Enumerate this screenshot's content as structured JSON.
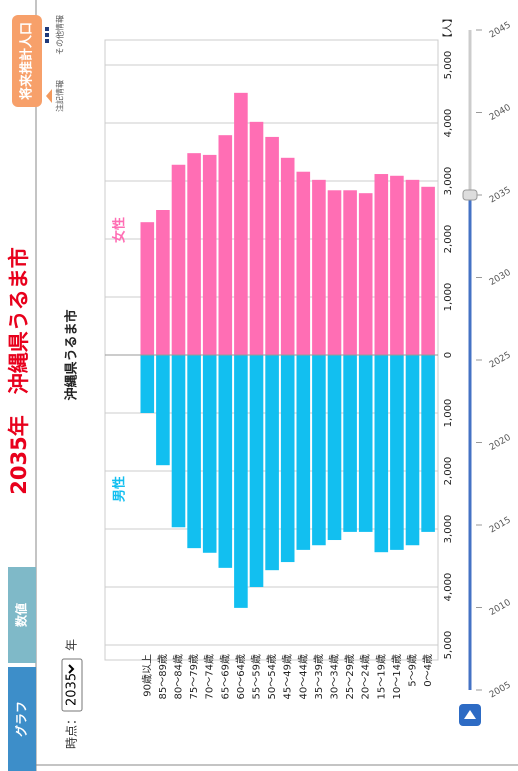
{
  "tabs": [
    "グラフ",
    "数値"
  ],
  "title": "2035年　沖縄県うるま市",
  "buttons": {
    "forecast": "将来推計人口",
    "notes": "注記情報",
    "other": "その他情報"
  },
  "period": {
    "label": "時点：",
    "selected": "2035",
    "unit": "年"
  },
  "chart_data": {
    "type": "pyramid",
    "title": "沖縄県うるま市",
    "unit": "【人】",
    "categories": [
      "90歳以上",
      "85～89歳",
      "80～84歳",
      "75～79歳",
      "70～74歳",
      "65～69歳",
      "60～64歳",
      "55～59歳",
      "50～54歳",
      "45～49歳",
      "40～44歳",
      "35～39歳",
      "30～34歳",
      "25～29歳",
      "20～24歳",
      "15～19歳",
      "10～14歳",
      "5～9歳",
      "0～4歳"
    ],
    "series": [
      {
        "name": "男性",
        "color": "#12bff0",
        "side": "left",
        "values": [
          1000,
          1900,
          2970,
          3330,
          3410,
          3670,
          4360,
          4000,
          3710,
          3570,
          3360,
          3280,
          3190,
          3050,
          3050,
          3400,
          3360,
          3280,
          3050
        ]
      },
      {
        "name": "女性",
        "color": "#ff6eb4",
        "side": "right",
        "values": [
          2290,
          2500,
          3280,
          3480,
          3450,
          3790,
          4520,
          4020,
          3760,
          3400,
          3160,
          3020,
          2840,
          2840,
          2790,
          3120,
          3090,
          3020,
          2900
        ]
      }
    ],
    "xlim": [
      0,
      5000
    ],
    "xticks_left": [
      {
        "value": 5000,
        "label": "5,000"
      },
      {
        "value": 4000,
        "label": "4,000"
      },
      {
        "value": 3000,
        "label": "3,000"
      },
      {
        "value": 2000,
        "label": "2,000"
      },
      {
        "value": 1000,
        "label": "1,000"
      }
    ],
    "xticks": [
      0,
      {
        "value": 1000,
        "label": "1,000"
      },
      {
        "value": 2000,
        "label": "2,000"
      },
      {
        "value": 3000,
        "label": "3,000"
      },
      {
        "value": 4000,
        "label": "4,000"
      },
      {
        "value": 5000,
        "label": "5,000"
      }
    ],
    "grid": true
  },
  "timeline": {
    "years": [
      2005,
      2010,
      2015,
      2020,
      2025,
      2030,
      2035,
      2040,
      2045
    ]
  }
}
